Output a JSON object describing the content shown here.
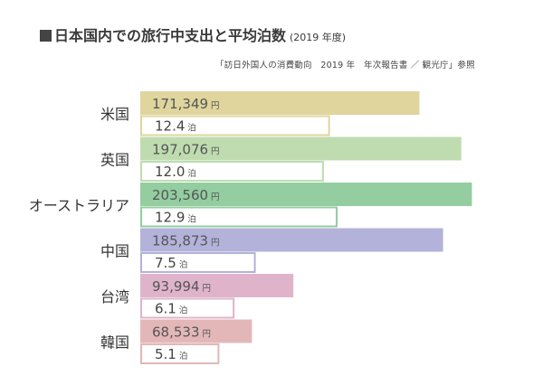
{
  "title": "日本国内での旅行中支出と平均泊数",
  "title_year": "(2019 年度)",
  "source": "「訪日外国人の消費動向　2019 年　年次報告書 ／ 観光庁」参照",
  "chart_data": {
    "type": "bar",
    "title": "日本国内での旅行中支出と平均泊数",
    "subtitle": "(2019 年度)",
    "categories": [
      "米国",
      "英国",
      "オーストラリア",
      "中国",
      "台湾",
      "韓国"
    ],
    "series": [
      {
        "values": [
          171349,
          197076,
          203560,
          185873,
          93994,
          68533
        ],
        "labels": [
          "171,349",
          "197,076",
          "203,560",
          "185,873",
          "93,994",
          "68,533"
        ],
        "unit": "円"
      },
      {
        "values": [
          12.4,
          12.0,
          12.9,
          7.5,
          6.1,
          5.1
        ],
        "labels": [
          "12.4",
          "12.0",
          "12.9",
          "7.5",
          "6.1",
          "5.1"
        ],
        "unit": "泊"
      }
    ],
    "colors": [
      "#dfd59d",
      "#bfdcb0",
      "#93cda0",
      "#b3b2da",
      "#dfb4cb",
      "#e3b7b8"
    ],
    "grid": false,
    "legend": "none"
  }
}
